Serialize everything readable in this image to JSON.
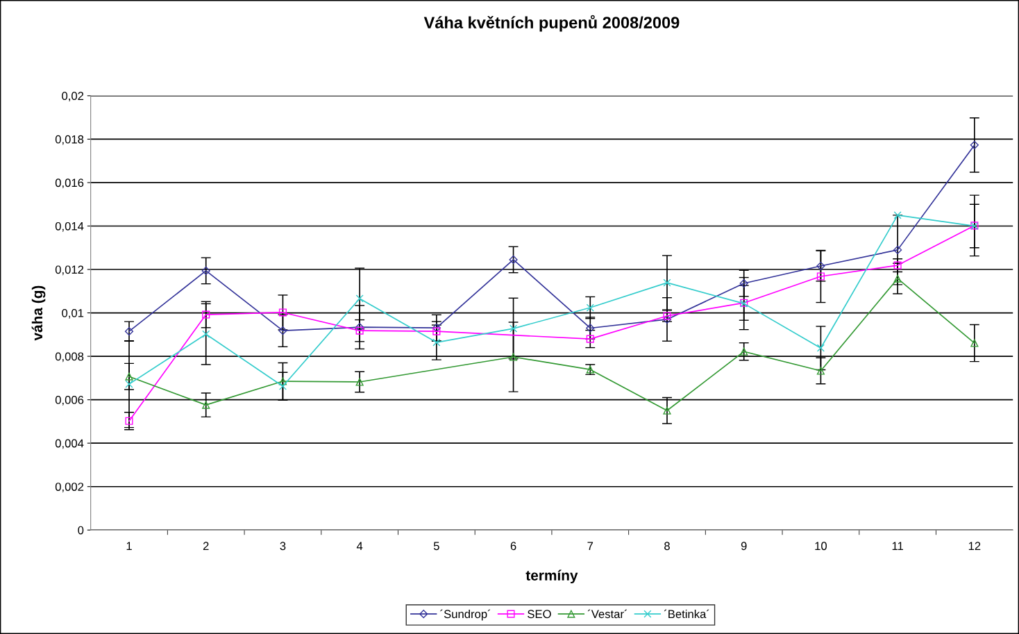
{
  "chart_data": {
    "type": "line",
    "title": "Váha květních pupenů 2008/2009",
    "xlabel": "termíny",
    "ylabel": "váha (g)",
    "categories": [
      "1",
      "2",
      "3",
      "4",
      "5",
      "6",
      "7",
      "8",
      "9",
      "10",
      "11",
      "12"
    ],
    "ylim": [
      0,
      0.02
    ],
    "yticks": [
      0,
      {
        "value": 0.002,
        "label": "0,002"
      },
      {
        "value": 0.004,
        "label": "0,004"
      },
      {
        "value": 0.006,
        "label": "0,006"
      },
      {
        "value": 0.008,
        "label": "0,008"
      },
      {
        "value": 0.01,
        "label": "0,01"
      },
      {
        "value": 0.012,
        "label": "0,012"
      },
      {
        "value": 0.014,
        "label": "0,014"
      },
      {
        "value": 0.016,
        "label": "0,016"
      },
      {
        "value": 0.018,
        "label": "0,018"
      },
      {
        "value": 0.02,
        "label": "0,02"
      }
    ],
    "grid": "y",
    "legend": "bottom",
    "line_style": "solid",
    "series": [
      {
        "name": "´Sundrop´",
        "color": "#333399",
        "marker": "diamond",
        "values": [
          0.00915,
          0.01194,
          0.00918,
          0.00934,
          0.00931,
          0.01245,
          0.0093,
          0.0097,
          0.01136,
          0.01216,
          0.0129,
          0.01773
        ],
        "errors": [
          0.00045,
          0.0006,
          0.00074,
          0.001,
          0.0006,
          0.0006,
          0.0005,
          0.001,
          0.0006,
          0.0007,
          0.0016,
          0.00125
        ]
      },
      {
        "name": "SEO",
        "color": "#ff00ff",
        "marker": "square",
        "values": [
          0.00502,
          0.00992,
          0.01002,
          0.00918,
          0.00915,
          null,
          0.0088,
          0.00986,
          0.01046,
          0.01168,
          0.01219,
          0.01402
        ],
        "errors": [
          0.0004,
          0.0006,
          0.0008,
          0.0005,
          0.00045,
          null,
          0.0004,
          0.00026,
          0.0008,
          0.0012,
          0.0003,
          0.0014
        ]
      },
      {
        "name": "´Vestar´",
        "color": "#339933",
        "marker": "triangle",
        "values": [
          0.00707,
          0.00576,
          0.00685,
          0.00682,
          null,
          0.00797,
          0.00739,
          0.0055,
          0.00822,
          0.00733,
          0.01158,
          0.00861
        ],
        "errors": [
          0.0006,
          0.00055,
          0.00085,
          0.00047,
          null,
          0.0016,
          0.00023,
          0.0006,
          0.0004,
          0.0006,
          0.0007,
          0.00085
        ]
      },
      {
        "name": "´Betinka´",
        "color": "#33cccc",
        "marker": "cross",
        "values": [
          0.00672,
          0.00902,
          0.00662,
          0.01066,
          0.00864,
          0.00928,
          0.01024,
          0.01139,
          0.01043,
          0.00838,
          0.0145,
          0.014
        ],
        "errors": [
          0.002,
          0.0014,
          0.00064,
          0.0014,
          0.0008,
          0.0014,
          0.0005,
          0.00125,
          0.0012,
          0.001,
          null,
          0.001
        ]
      }
    ]
  }
}
